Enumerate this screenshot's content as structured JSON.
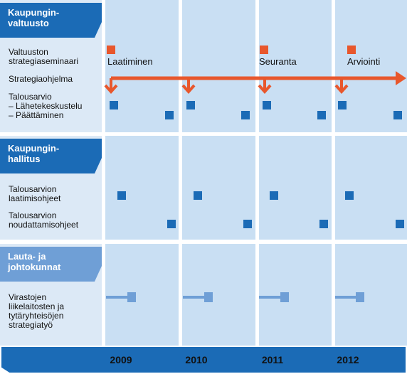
{
  "years": [
    "2009",
    "2010",
    "2011",
    "2012"
  ],
  "colors": {
    "dark_blue": "#1b6bb6",
    "light_blue": "#6f9fd6",
    "orange": "#e8572c",
    "panel": "#dce9f6",
    "year_column": "#c9dff3"
  },
  "sections": [
    {
      "title_lines": [
        "Kaupungin-",
        "valtuusto"
      ],
      "rows": [
        {
          "lines": [
            "Valtuuston",
            "strategiaseminaari"
          ]
        },
        {
          "lines": [
            "Strategiaohjelma"
          ]
        },
        {
          "lines": [
            "Talousarvio",
            "– Lähetekeskustelu",
            "– Päättäminen"
          ]
        }
      ]
    },
    {
      "title_lines": [
        "Kaupungin-",
        "hallitus"
      ],
      "rows": [
        {
          "lines": [
            "Talousarvion",
            "laatimisohjeet"
          ]
        },
        {
          "lines": [
            "Talousarvion",
            "noudattamisohjeet"
          ]
        }
      ]
    },
    {
      "title_lines": [
        "Lauta- ja",
        "johtokunnat"
      ],
      "rows": [
        {
          "lines": [
            "Virastojen",
            "liikelaitosten ja",
            "tytäryhteisöjen",
            "strategiatyö"
          ]
        }
      ]
    }
  ],
  "seminar_milestones": [
    "Laatiminen",
    "Seuranta",
    "Arviointi"
  ]
}
